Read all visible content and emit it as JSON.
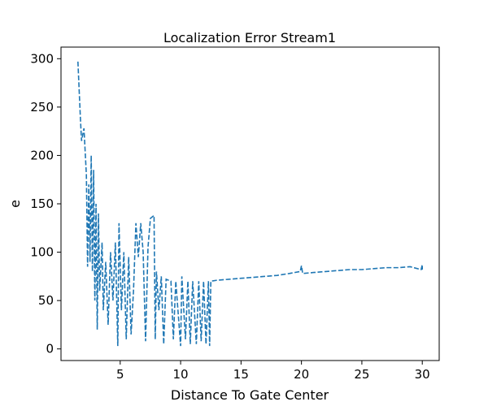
{
  "chart_data": {
    "type": "line",
    "title": "Localization Error Stream1",
    "x_label": "Distance To Gate Center",
    "y_label": "e",
    "x": [
      1.5,
      1.7,
      1.8,
      2.0,
      2.2,
      2.3,
      2.4,
      2.5,
      2.6,
      2.7,
      2.8,
      2.9,
      3.0,
      3.1,
      3.2,
      3.3,
      3.5,
      3.6,
      3.8,
      4.0,
      4.2,
      4.4,
      4.6,
      4.8,
      4.9,
      5.1,
      5.3,
      5.5,
      5.7,
      5.9,
      6.1,
      6.3,
      6.5,
      6.7,
      6.9,
      7.1,
      7.3,
      7.5,
      7.8,
      7.9,
      8.0,
      8.2,
      8.4,
      8.6,
      8.8,
      9.2,
      9.4,
      9.6,
      10.0,
      10.1,
      10.4,
      10.6,
      10.8,
      11.0,
      11.3,
      11.5,
      11.7,
      11.9,
      12.1,
      12.3,
      12.4,
      12.5,
      13,
      14,
      15,
      16,
      17,
      18,
      19,
      19.9,
      20,
      20.1,
      21,
      22,
      23,
      24,
      25,
      26,
      27,
      28,
      29,
      29.9,
      30,
      30
    ],
    "series": [
      {
        "color": "#1f77b4",
        "values": [
          297,
          240,
          215,
          228,
          180,
          85,
          170,
          90,
          200,
          80,
          185,
          50,
          150,
          20,
          140,
          60,
          110,
          40,
          90,
          25,
          100,
          50,
          110,
          3,
          130,
          40,
          100,
          10,
          95,
          15,
          60,
          130,
          95,
          130,
          100,
          8,
          105,
          135,
          138,
          10,
          80,
          40,
          75,
          5,
          72,
          70,
          10,
          70,
          3,
          75,
          10,
          70,
          5,
          70,
          5,
          70,
          8,
          70,
          5,
          70,
          3,
          70,
          71,
          72,
          73,
          74,
          75,
          76,
          78,
          80,
          86,
          78,
          79,
          80,
          81,
          82,
          82,
          83,
          84,
          84,
          85,
          82,
          87,
          82
        ]
      }
    ],
    "xlim": [
      0.1,
      31.4
    ],
    "ylim": [
      -12,
      312
    ],
    "xticks": [
      5,
      10,
      15,
      20,
      25,
      30
    ],
    "yticks": [
      0,
      50,
      100,
      150,
      200,
      250,
      300
    ]
  }
}
